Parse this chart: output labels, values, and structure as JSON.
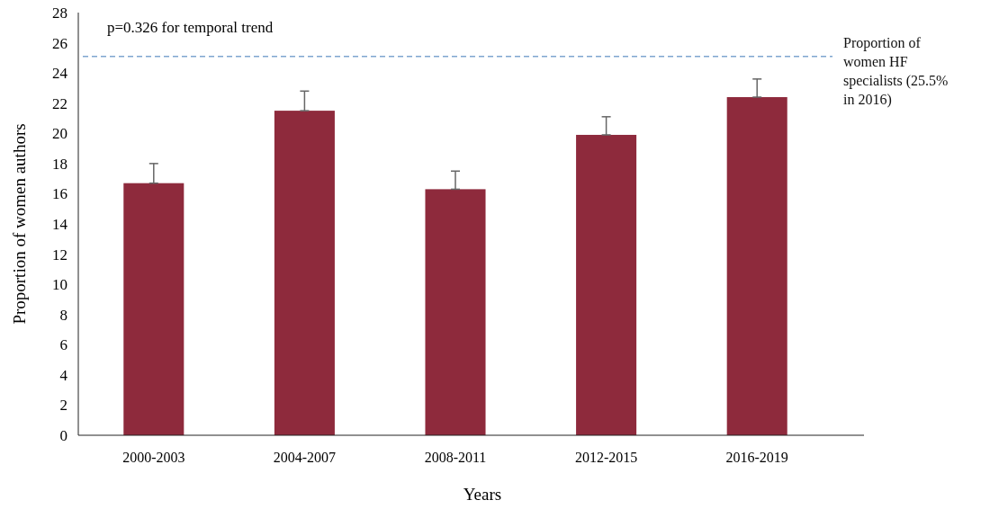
{
  "chart_data": {
    "type": "bar",
    "xlabel": "Years",
    "ylabel": "Proportion of women authors",
    "categories": [
      "2000-2003",
      "2004-2007",
      "2008-2011",
      "2012-2015",
      "2016-2019"
    ],
    "values": [
      16.7,
      21.5,
      16.3,
      19.9,
      22.4
    ],
    "color": "#8e2a3c",
    "errors": [
      [
        16.7,
        18.0
      ],
      [
        21.5,
        22.8
      ],
      [
        16.3,
        17.5
      ],
      [
        19.9,
        21.1
      ],
      [
        22.4,
        23.6
      ]
    ],
    "ylim": [
      0,
      28
    ],
    "yticks": [
      0,
      2,
      4,
      6,
      8,
      10,
      12,
      14,
      16,
      18,
      20,
      22,
      24,
      26,
      28
    ],
    "grid": false,
    "ref_lines": [
      {
        "axis": "y",
        "value": 25.1,
        "label": "Proportion of women HF specialists (25.5% in 2016)",
        "color": "#7fa6d0",
        "line_style": "dashed"
      }
    ],
    "annotations": [
      "p=0.326 for temporal trend"
    ]
  }
}
